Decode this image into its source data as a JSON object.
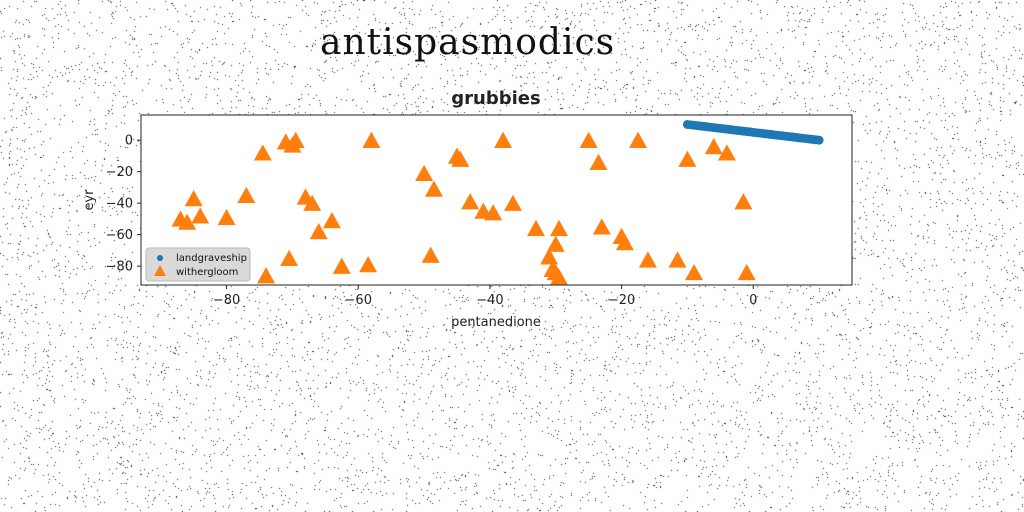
{
  "page": {
    "title": "antispasmodics"
  },
  "colors": {
    "landgraveship": "#1f77b4",
    "withergloom": "#ff7f0e"
  },
  "chart_data": {
    "type": "scatter",
    "title": "grubbies",
    "xlabel": "pentanedione",
    "ylabel": "eyr",
    "xlim": [
      -93,
      15
    ],
    "ylim": [
      -92,
      16
    ],
    "xticks": [
      -80,
      -60,
      -40,
      -20,
      0
    ],
    "yticks": [
      0,
      -20,
      -40,
      -60,
      -80
    ],
    "xtick_labels": [
      "−80",
      "−60",
      "−40",
      "−20",
      "0"
    ],
    "ytick_labels": [
      "0",
      "−20",
      "−40",
      "−60",
      "−80"
    ],
    "grid": false,
    "legend": {
      "position": "lower-left",
      "entries": [
        "landgraveship",
        "withergloom"
      ]
    },
    "series": [
      {
        "name": "landgraveship",
        "marker": "circle",
        "color": "#1f77b4",
        "x": [
          -10,
          -9.5,
          -9,
          -8.5,
          -8,
          -7.5,
          -7,
          -6.5,
          -6,
          -5.5,
          -5,
          -4.5,
          -4,
          -3.5,
          -3,
          -2.5,
          -2,
          -1.5,
          -1,
          -0.5,
          0,
          0.5,
          1,
          1.5,
          2,
          2.5,
          3,
          3.5,
          4,
          4.5,
          5,
          5.5,
          6,
          6.5,
          7,
          7.5,
          8,
          8.5,
          9,
          9.5,
          10
        ],
        "y": [
          10,
          9.75,
          9.5,
          9.25,
          9,
          8.75,
          8.5,
          8.25,
          8,
          7.75,
          7.5,
          7.25,
          7,
          6.75,
          6.5,
          6.25,
          6,
          5.75,
          5.5,
          5.25,
          5,
          4.75,
          4.5,
          4.25,
          4,
          3.75,
          3.5,
          3.25,
          3,
          2.75,
          2.5,
          2.25,
          2,
          1.75,
          1.5,
          1.25,
          1,
          0.75,
          0.5,
          0.25,
          0
        ]
      },
      {
        "name": "withergloom",
        "marker": "triangle",
        "color": "#ff7f0e",
        "x": [
          -87,
          -86,
          -85,
          -84,
          -80,
          -77,
          -74.5,
          -74,
          -71,
          -70.5,
          -70,
          -69.5,
          -68,
          -67,
          -66,
          -64,
          -62.5,
          -58.5,
          -58,
          -50,
          -49,
          -48.5,
          -45,
          -44.5,
          -43,
          -41,
          -39.5,
          -38,
          -36.5,
          -33,
          -31,
          -30.5,
          -30,
          -30,
          -29.5,
          -29.5,
          -25,
          -23.5,
          -23,
          -20,
          -19.5,
          -17.5,
          -16,
          -11.5,
          -10,
          -9,
          -6,
          -4,
          -1.5,
          -1
        ],
        "y": [
          -51,
          -53,
          -38,
          -49,
          -50,
          -36,
          -9,
          -87,
          -2,
          -76,
          -4,
          -1,
          -37,
          -41,
          -59,
          -52,
          -81,
          -80,
          -1,
          -22,
          -74,
          -32,
          -11,
          -13,
          -40,
          -46,
          -47,
          -1,
          -41,
          -57,
          -75,
          -83,
          -85,
          -67,
          -57,
          -88,
          -1,
          -15,
          -56,
          -62,
          -66,
          -1,
          -77,
          -77,
          -13,
          -85,
          -5,
          -9,
          -40,
          -85
        ]
      }
    ]
  }
}
